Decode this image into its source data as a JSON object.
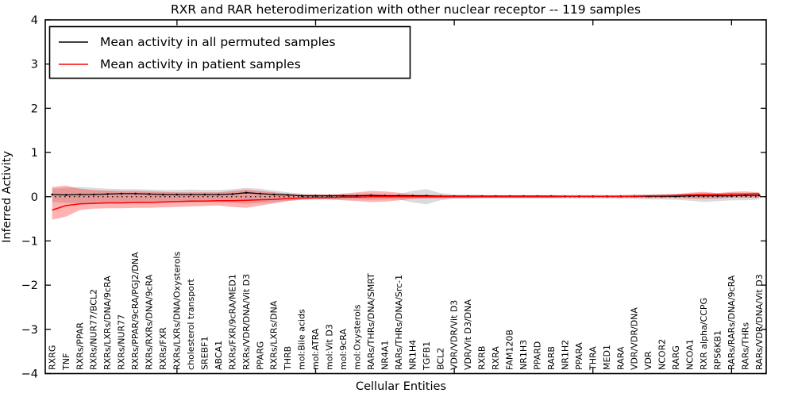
{
  "figure": {
    "title": "RXR and RAR heterodimerization with other nuclear receptor -- 119 samples",
    "xlabel": "Cellular Entities",
    "ylabel": "Inferred Activity"
  },
  "legend": {
    "position": "upper left",
    "entries": [
      {
        "label": "Mean activity in all permuted samples",
        "color": "#000000"
      },
      {
        "label": "Mean activity in patient samples",
        "color": "#ff0000"
      }
    ]
  },
  "chart_data": {
    "type": "line",
    "title": "RXR and RAR heterodimerization with other nuclear receptor -- 119 samples",
    "xlabel": "Cellular Entities",
    "ylabel": "Inferred Activity",
    "ylim": [
      -4,
      4
    ],
    "yticks": [
      -4,
      -3,
      -2,
      -1,
      0,
      1,
      2,
      3,
      4
    ],
    "x_major_tick_indices": [
      9,
      19,
      29,
      39,
      49
    ],
    "grid": false,
    "legend_position": "upper left",
    "zero_line": true,
    "categories": [
      "RXRG",
      "TNF",
      "RXRs/PPAR",
      "RXRs/NUR77/BCL2",
      "RXRs/LXRs/DNA/9cRA",
      "RXRs/NUR77",
      "RXRs/PPAR/9cRA/PGJ2/DNA",
      "RXRs/RXRs/DNA/9cRA",
      "RXRs/FXR",
      "RXRs/LXRs/DNA/Oxysterols",
      "cholesterol transport",
      "SREBF1",
      "ABCA1",
      "RXRs/FXR/9cRA/MED1",
      "RXRs/VDR/DNA/Vit D3",
      "PPARG",
      "RXRs/LXRs/DNA",
      "THRB",
      "mol:Bile acids",
      "mol:ATRA",
      "mol:Vit D3",
      "mol:9cRA",
      "mol:Oxysterols",
      "RARs/THRs/DNA/SMRT",
      "NR4A1",
      "RARs/THRs/DNA/Src-1",
      "NR1H4",
      "TGFB1",
      "BCL2",
      "VDR/VDR/Vit D3",
      "VDR/Vit D3/DNA",
      "RXRB",
      "RXRA",
      "FAM120B",
      "NR1H3",
      "PPARD",
      "RARB",
      "NR1H2",
      "PPARA",
      "THRA",
      "MED1",
      "RARA",
      "VDR/VDR/DNA",
      "VDR",
      "NCOR2",
      "RARG",
      "NCOA1",
      "RXR alpha/CCPG",
      "RPS6KB1",
      "RARs/RARs/DNA/9cRA",
      "RARs/THRs",
      "RARs/VDR/DNA/Vit D3"
    ],
    "series": [
      {
        "name": "Mean activity in all permuted samples",
        "color": "#000000",
        "markers": true,
        "values": [
          0.05,
          0.04,
          0.05,
          0.05,
          0.06,
          0.07,
          0.07,
          0.06,
          0.05,
          0.05,
          0.05,
          0.05,
          0.05,
          0.06,
          0.09,
          0.07,
          0.05,
          0.04,
          0.02,
          0.02,
          0.02,
          0.02,
          0.02,
          0.03,
          0.02,
          0.02,
          0.02,
          0.02,
          0.01,
          0.01,
          0.01,
          0.01,
          0.01,
          0.01,
          0.01,
          0.01,
          0.01,
          0.01,
          0.01,
          0.01,
          0.01,
          0.01,
          0.01,
          0.01,
          0.01,
          0.01,
          0.02,
          0.02,
          0.02,
          0.02,
          0.03,
          0.03
        ]
      },
      {
        "name": "Mean activity in patient samples",
        "color": "#ff0000",
        "markers": false,
        "values": [
          -0.3,
          -0.2,
          -0.16,
          -0.15,
          -0.14,
          -0.14,
          -0.13,
          -0.13,
          -0.12,
          -0.11,
          -0.1,
          -0.1,
          -0.09,
          -0.09,
          -0.08,
          -0.07,
          -0.06,
          -0.04,
          -0.03,
          -0.02,
          -0.02,
          -0.01,
          -0.01,
          0,
          0,
          0,
          0,
          0,
          0,
          0,
          0,
          0,
          0,
          0,
          0,
          0,
          0,
          0.01,
          0.01,
          0.01,
          0.01,
          0.01,
          0.01,
          0.02,
          0.02,
          0.03,
          0.04,
          0.05,
          0.05,
          0.06,
          0.06,
          0.07
        ]
      }
    ],
    "bands": [
      {
        "name": "permuted samples range",
        "fill": "#909090",
        "fill_opacity": 0.32,
        "upper": [
          0.18,
          0.2,
          0.22,
          0.2,
          0.18,
          0.17,
          0.17,
          0.16,
          0.15,
          0.15,
          0.16,
          0.15,
          0.15,
          0.17,
          0.2,
          0.18,
          0.14,
          0.1,
          0.07,
          0.06,
          0.06,
          0.06,
          0.06,
          0.07,
          0.06,
          0.06,
          0.13,
          0.17,
          0.08,
          0.05,
          0.05,
          0.04,
          0.04,
          0.04,
          0.04,
          0.04,
          0.04,
          0.04,
          0.04,
          0.04,
          0.04,
          0.04,
          0.05,
          0.05,
          0.06,
          0.06,
          0.07,
          0.08,
          0.08,
          0.07,
          0.07,
          0.07
        ],
        "lower": [
          -0.12,
          -0.14,
          -0.15,
          -0.14,
          -0.13,
          -0.13,
          -0.13,
          -0.12,
          -0.12,
          -0.12,
          -0.13,
          -0.12,
          -0.12,
          -0.14,
          -0.16,
          -0.14,
          -0.12,
          -0.09,
          -0.06,
          -0.06,
          -0.06,
          -0.06,
          -0.06,
          -0.07,
          -0.06,
          -0.06,
          -0.13,
          -0.17,
          -0.08,
          -0.05,
          -0.05,
          -0.04,
          -0.04,
          -0.04,
          -0.04,
          -0.04,
          -0.04,
          -0.04,
          -0.04,
          -0.04,
          -0.04,
          -0.05,
          -0.05,
          -0.06,
          -0.06,
          -0.07,
          -0.09,
          -0.12,
          -0.1,
          -0.08,
          -0.08,
          -0.06
        ]
      },
      {
        "name": "patient samples range",
        "fill": "#ff0000",
        "fill_opacity": 0.3,
        "upper": [
          0.22,
          0.25,
          0.18,
          0.15,
          0.14,
          0.13,
          0.13,
          0.12,
          0.11,
          0.1,
          0.1,
          0.1,
          0.1,
          0.13,
          0.16,
          0.13,
          0.1,
          0.07,
          0.05,
          0.05,
          0.05,
          0.07,
          0.1,
          0.13,
          0.12,
          0.09,
          0.05,
          0.04,
          0.04,
          0.03,
          0.03,
          0.03,
          0.03,
          0.03,
          0.03,
          0.03,
          0.03,
          0.03,
          0.03,
          0.03,
          0.03,
          0.03,
          0.04,
          0.04,
          0.05,
          0.06,
          0.09,
          0.11,
          0.08,
          0.11,
          0.12,
          0.1
        ],
        "lower": [
          -0.52,
          -0.45,
          -0.3,
          -0.27,
          -0.26,
          -0.26,
          -0.25,
          -0.25,
          -0.24,
          -0.23,
          -0.22,
          -0.21,
          -0.2,
          -0.23,
          -0.25,
          -0.2,
          -0.15,
          -0.1,
          -0.07,
          -0.06,
          -0.06,
          -0.08,
          -0.1,
          -0.12,
          -0.11,
          -0.08,
          -0.05,
          -0.04,
          -0.04,
          -0.03,
          -0.03,
          -0.02,
          -0.02,
          -0.02,
          -0.02,
          -0.02,
          -0.02,
          -0.02,
          -0.02,
          -0.02,
          -0.02,
          -0.02,
          -0.02,
          -0.03,
          -0.03,
          -0.03,
          -0.04,
          -0.05,
          -0.04,
          -0.02,
          -0.02,
          -0.03
        ]
      }
    ]
  }
}
